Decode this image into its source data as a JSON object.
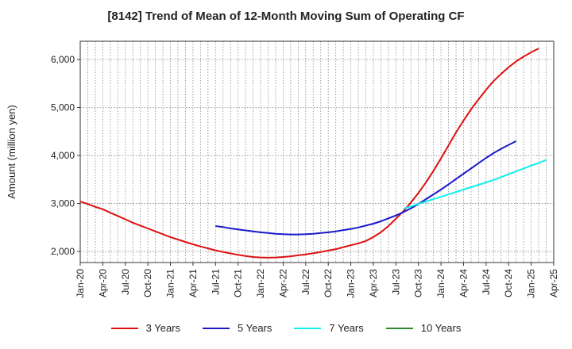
{
  "chart_data": {
    "type": "line",
    "title": "[8142]  Trend of Mean of 12-Month Moving Sum of Operating CF",
    "xlabel": "",
    "ylabel": "Amount (million yen)",
    "ylim": [
      1770,
      6380
    ],
    "yticks": [
      2000,
      3000,
      4000,
      5000,
      6000
    ],
    "ytick_labels": [
      "2,000",
      "3,000",
      "4,000",
      "5,000",
      "6,000"
    ],
    "x_tick_labels": [
      "Jan-20",
      "Apr-20",
      "Jul-20",
      "Oct-20",
      "Jan-21",
      "Apr-21",
      "Jul-21",
      "Oct-21",
      "Jan-22",
      "Apr-22",
      "Jul-22",
      "Oct-22",
      "Jan-23",
      "Apr-23",
      "Jul-23",
      "Oct-23",
      "Jan-24",
      "Apr-24",
      "Jul-24",
      "Oct-24",
      "Jan-25",
      "Apr-25"
    ],
    "grid": true,
    "legend_position": "bottom",
    "series": [
      {
        "name": "3 Years",
        "color": "#dd1111",
        "x_start": 0,
        "values": [
          3040,
          2990,
          2930,
          2880,
          2810,
          2740,
          2670,
          2600,
          2540,
          2480,
          2420,
          2360,
          2300,
          2250,
          2200,
          2150,
          2105,
          2065,
          2025,
          1990,
          1960,
          1930,
          1905,
          1885,
          1875,
          1870,
          1875,
          1885,
          1900,
          1920,
          1940,
          1965,
          1990,
          2020,
          2050,
          2090,
          2130,
          2170,
          2220,
          2300,
          2400,
          2530,
          2680,
          2840,
          3020,
          3220,
          3440,
          3680,
          3940,
          4210,
          4480,
          4730,
          4960,
          5170,
          5370,
          5550,
          5700,
          5840,
          5960,
          6060,
          6150,
          6230
        ]
      },
      {
        "name": "5 Years",
        "color": "#1a1acc",
        "x_start": 18,
        "values": [
          2530,
          2510,
          2480,
          2460,
          2440,
          2420,
          2400,
          2385,
          2370,
          2360,
          2355,
          2355,
          2360,
          2370,
          2385,
          2400,
          2420,
          2445,
          2470,
          2500,
          2540,
          2580,
          2630,
          2690,
          2750,
          2820,
          2900,
          2990,
          3090,
          3190,
          3290,
          3400,
          3510,
          3620,
          3730,
          3840,
          3950,
          4050,
          4140,
          4220,
          4300
        ]
      },
      {
        "name": "7 Years",
        "color": "#11eeee",
        "x_start": 43,
        "values": [
          2890,
          2940,
          2990,
          3040,
          3090,
          3140,
          3190,
          3240,
          3290,
          3340,
          3390,
          3440,
          3490,
          3550,
          3610,
          3670,
          3730,
          3790,
          3840,
          3910
        ]
      },
      {
        "name": "10 Years",
        "color": "#2a8a2a",
        "x_start": 0,
        "values": []
      }
    ]
  }
}
